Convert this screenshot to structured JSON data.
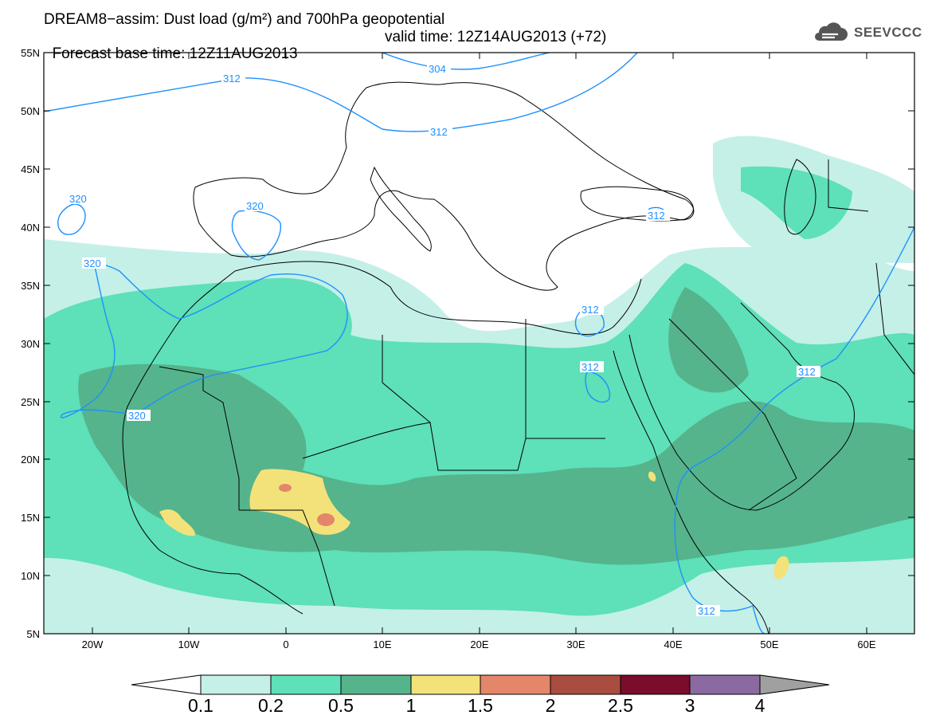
{
  "header": {
    "title_line1": "DREAM8−assim: Dust load (g/m²) and 700hPa geopotential",
    "title_line2_left": "Forecast base time: 12Z11AUG2013",
    "title_line2_right": "valid time: 12Z14AUG2013 (+72)"
  },
  "logo": {
    "text": "SEEVCCC",
    "icon": "cloud-icon"
  },
  "map": {
    "lat_labels": [
      "55N",
      "50N",
      "45N",
      "40N",
      "35N",
      "30N",
      "25N",
      "20N",
      "15N",
      "10N",
      "5N"
    ],
    "lon_labels": [
      "20W",
      "10W",
      "0",
      "10E",
      "20E",
      "30E",
      "40E",
      "50E",
      "60E"
    ],
    "contour_labels": [
      "312",
      "304",
      "312",
      "320",
      "320",
      "320",
      "320",
      "312",
      "312",
      "312",
      "312",
      "312"
    ],
    "colors": {
      "land_outline": "#000000",
      "contour": "#1e90ff",
      "dust_0_1": "#c4f0e8",
      "dust_0_2": "#5ee0b8",
      "dust_0_5": "#55b48c",
      "dust_1": "#f3e27a",
      "dust_1_5": "#e3866a"
    }
  },
  "colorbar": {
    "labels": [
      "0.1",
      "0.2",
      "0.5",
      "1",
      "1.5",
      "2",
      "2.5",
      "3",
      "4"
    ],
    "colors": [
      "#ffffff",
      "#c4f0e8",
      "#5ee0b8",
      "#55b48c",
      "#f3e27a",
      "#e3866a",
      "#a84d3f",
      "#7a0c2c",
      "#8a6aa0",
      "#a0a0a0"
    ]
  }
}
